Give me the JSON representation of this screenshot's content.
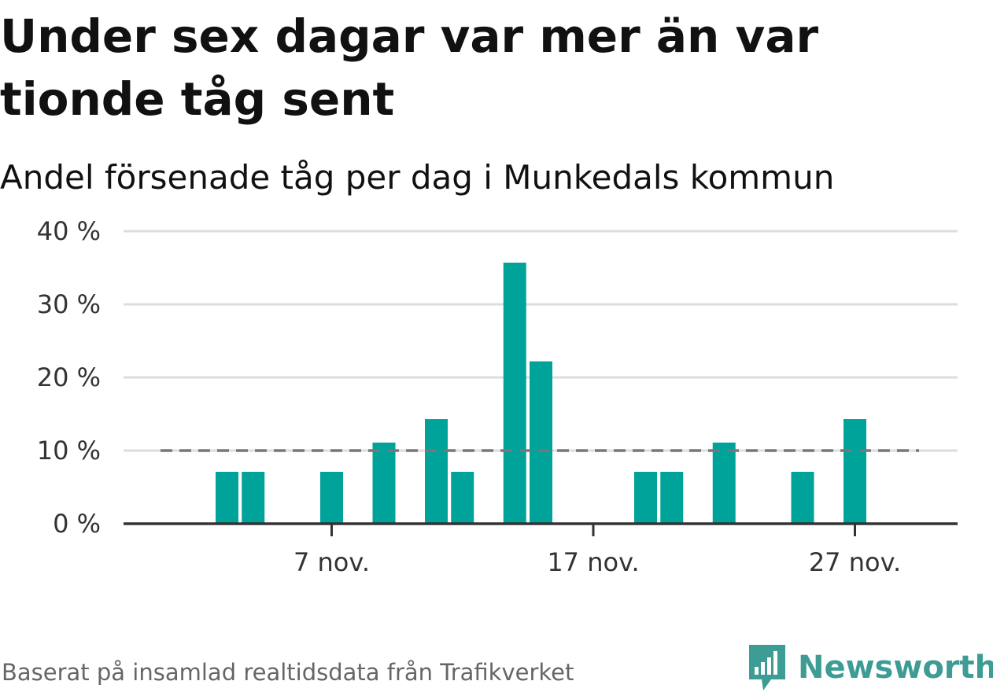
{
  "title": "Under sex dagar var mer än var tionde tåg sent",
  "subtitle": "Andel försenade tåg per dag i Munkedals kommun",
  "source": "Baserat på insamlad realtidsdata från Trafikverket",
  "brand": {
    "name": "Newsworthy",
    "icon": "newsworthy-logo-icon",
    "color": "#3d9c94"
  },
  "colors": {
    "bar": "#00a39a",
    "reference": "#777777",
    "grid": "#dddddd",
    "axis": "#333333"
  },
  "chart_data": {
    "type": "bar",
    "categories": [
      "1 nov.",
      "2 nov.",
      "3 nov.",
      "4 nov.",
      "5 nov.",
      "6 nov.",
      "7 nov.",
      "8 nov.",
      "9 nov.",
      "10 nov.",
      "11 nov.",
      "12 nov.",
      "13 nov.",
      "14 nov.",
      "15 nov.",
      "16 nov.",
      "17 nov.",
      "18 nov.",
      "19 nov.",
      "20 nov.",
      "21 nov.",
      "22 nov.",
      "23 nov.",
      "24 nov.",
      "25 nov.",
      "26 nov.",
      "27 nov.",
      "28 nov.",
      "29 nov.",
      "30 nov."
    ],
    "values": [
      0,
      0,
      7.1,
      7.1,
      0,
      0,
      7.1,
      0,
      11.1,
      0,
      14.3,
      7.1,
      0,
      35.7,
      22.2,
      0,
      0,
      0,
      7.1,
      7.1,
      0,
      11.1,
      0,
      0,
      7.1,
      0,
      14.3,
      0,
      0,
      0
    ],
    "reference_line": {
      "value": 10,
      "style": "dashed"
    },
    "ylim": [
      0,
      40
    ],
    "y_ticks": [
      {
        "value": 0,
        "label": "0 %"
      },
      {
        "value": 10,
        "label": "10 %"
      },
      {
        "value": 20,
        "label": "20 %"
      },
      {
        "value": 30,
        "label": "30 %"
      },
      {
        "value": 40,
        "label": "40 %"
      }
    ],
    "x_ticks": [
      {
        "category": "7 nov.",
        "label": "7 nov."
      },
      {
        "category": "17 nov.",
        "label": "17 nov."
      },
      {
        "category": "27 nov.",
        "label": "27 nov."
      }
    ],
    "grid": true,
    "legend": "none"
  }
}
